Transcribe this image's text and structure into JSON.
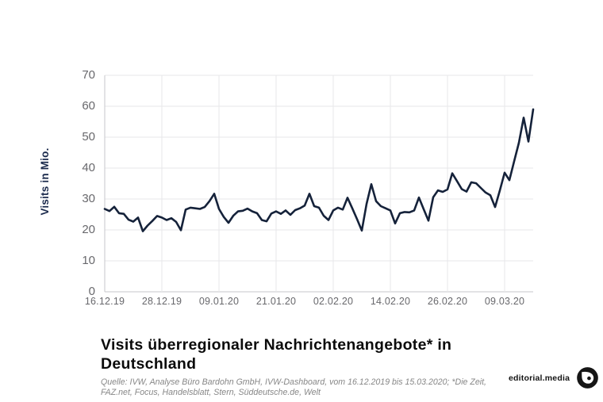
{
  "chart_data": {
    "type": "line",
    "title": "Visits überregionaler Nachrichtenangebote* in Deutschland",
    "ylabel": "Visits in Mio.",
    "ylim": [
      0,
      70
    ],
    "yticks": [
      70,
      60,
      50,
      40,
      30,
      20,
      10,
      0
    ],
    "xtick_labels": [
      "16.12.19",
      "28.12.19",
      "09.01.20",
      "21.01.20",
      "02.02.20",
      "14.02.20",
      "26.02.20",
      "09.03.20"
    ],
    "xtick_days": [
      0,
      12,
      24,
      36,
      48,
      60,
      72,
      84
    ],
    "x_range_days": [
      0,
      90
    ],
    "grid": true,
    "legend": "none",
    "line_color": "#15223a",
    "grid_color": "#e7e7ea",
    "axis_color": "#c7c7cb",
    "series": [
      {
        "name": "Visits in Mio.",
        "start_label": "16.12.19",
        "end_label": "15.03.20",
        "values": [
          26.8,
          26.1,
          27.5,
          25.4,
          25.2,
          23.3,
          22.7,
          24.0,
          19.6,
          21.4,
          22.9,
          24.5,
          24.0,
          23.2,
          23.8,
          22.6,
          19.9,
          26.6,
          27.2,
          27.0,
          26.8,
          27.4,
          29.3,
          31.7,
          26.8,
          24.2,
          22.3,
          24.6,
          26.0,
          26.2,
          26.9,
          26.0,
          25.4,
          23.2,
          22.8,
          25.3,
          26.0,
          25.2,
          26.3,
          24.9,
          26.4,
          27.0,
          27.9,
          31.7,
          27.7,
          27.2,
          24.6,
          23.2,
          26.3,
          27.2,
          26.6,
          30.4,
          27.0,
          23.5,
          19.8,
          28.4,
          34.8,
          29.3,
          27.7,
          27.0,
          26.3,
          22.1,
          25.4,
          25.8,
          25.7,
          26.3,
          30.5,
          26.7,
          23.0,
          30.6,
          32.8,
          32.3,
          33.1,
          38.3,
          35.8,
          33.2,
          32.4,
          35.4,
          35.1,
          33.6,
          32.1,
          31.2,
          27.4,
          32.8,
          38.5,
          36.1,
          42.2,
          48.2,
          56.3,
          48.6,
          59.0
        ]
      }
    ]
  },
  "caption": {
    "title_lines": [
      "Visits überregionaler Nachrichtenangebote* in",
      "Deutschland"
    ],
    "source_lines": [
      "Quelle: IVW, Analyse Büro Bardohn GmbH, IVW-Dashboard, vom 16.12.2019 bis 15.03.2020; *Die Zeit,",
      "FAZ.net, Focus, Handelsblatt, Stern, Süddeutsche.de, Welt"
    ]
  },
  "branding": {
    "name": "editorial.media",
    "logo_icon": "drop-in-circle-icon",
    "logo_color": "#161616"
  }
}
